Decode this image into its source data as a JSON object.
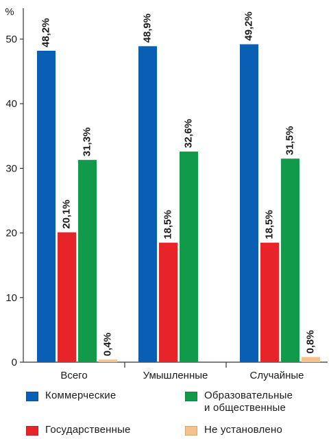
{
  "chart_data": {
    "type": "bar",
    "categories": [
      "Всего",
      "Умышленные",
      "Случайные"
    ],
    "series": [
      {
        "name": "Коммерческие",
        "color": "#0a5fb4",
        "values": [
          48.2,
          48.9,
          49.2
        ],
        "labels": [
          "48,2%",
          "48,9%",
          "49,2%"
        ]
      },
      {
        "name": "Государственные",
        "color": "#e8242b",
        "values": [
          20.1,
          18.5,
          18.5
        ],
        "labels": [
          "20,1%",
          "18,5%",
          "18,5%"
        ]
      },
      {
        "name": "Образовательные\nи общественные",
        "color": "#109a4a",
        "values": [
          31.3,
          32.6,
          31.5
        ],
        "labels": [
          "31,3%",
          "32,6%",
          "31,5%"
        ]
      },
      {
        "name": "Не установлено",
        "color": "#f6c28b",
        "values": [
          0.4,
          null,
          0.8
        ],
        "labels": [
          "0,4%",
          null,
          "0,8%"
        ]
      }
    ],
    "ylabel": "%",
    "ylim": [
      0,
      50
    ],
    "yticks": [
      0,
      10,
      20,
      30,
      40,
      50
    ],
    "grid": false,
    "legend": "bottom"
  }
}
